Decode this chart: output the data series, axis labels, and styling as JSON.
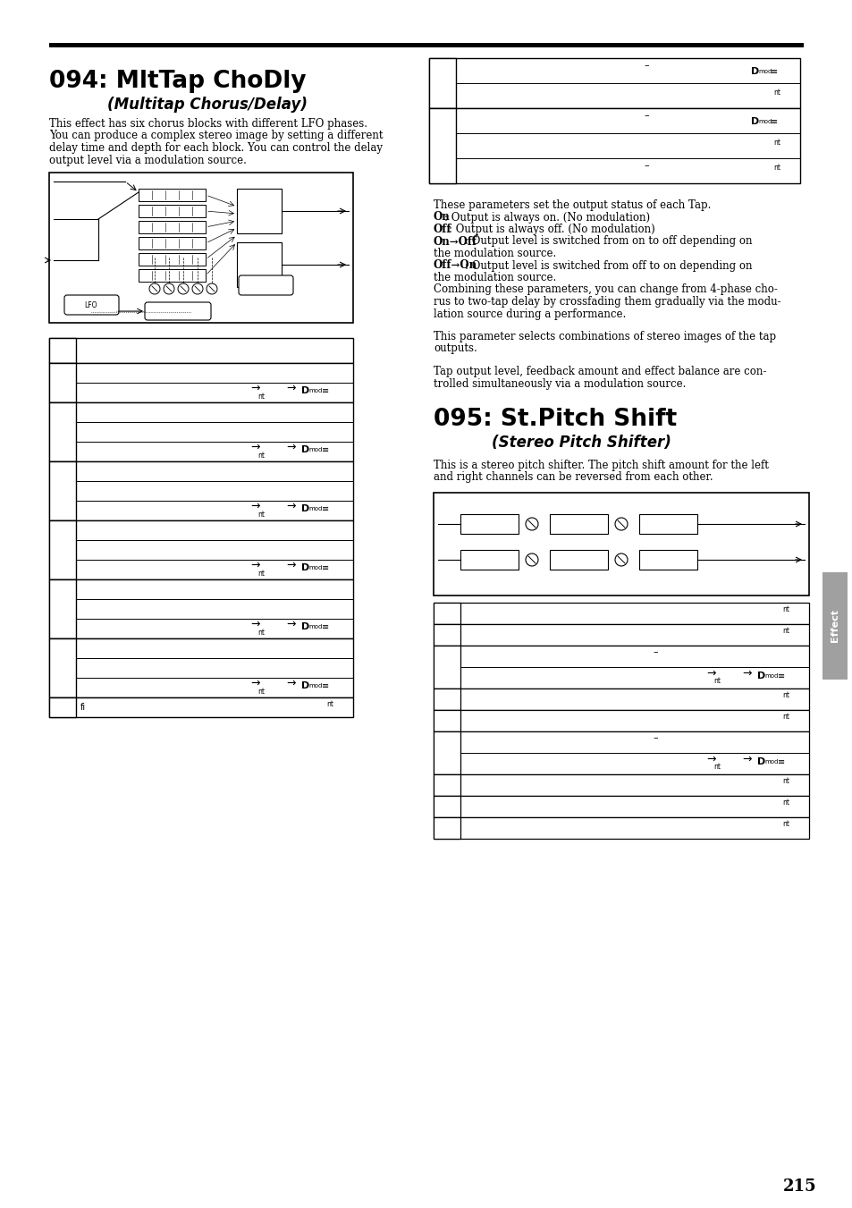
{
  "page_number": "215",
  "section1_title": "094: MltTap ChoDly",
  "section1_subtitle": "(Multitap Chorus/Delay)",
  "section1_desc_lines": [
    "This effect has six chorus blocks with different LFO phases.",
    "You can produce a complex stereo image by setting a different",
    "delay time and depth for each block. You can control the delay",
    "output level via a modulation source."
  ],
  "section2_title": "095: St.Pitch Shift",
  "section2_subtitle": "(Stereo Pitch Shifter)",
  "section2_desc_lines": [
    "This is a stereo pitch shifter. The pitch shift amount for the left",
    "and right channels can be reversed from each other."
  ],
  "right_desc_lines": [
    "These parameters set the output status of each Tap.",
    [
      "On",
      ": Output is always on. (No modulation)"
    ],
    [
      "Off",
      ": Output is always off. (No modulation)"
    ],
    [
      "On→Off",
      ": Output level is switched from on to off depending on"
    ],
    "the modulation source.",
    [
      "Off→On",
      ": Output level is switched from off to on depending on"
    ],
    "the modulation source.",
    "Combining these parameters, you can change from 4-phase cho-",
    "rus to two-tap delay by crossfading them gradually via the modu-",
    "lation source during a performance."
  ],
  "right_desc2": [
    "This parameter selects combinations of stereo images of the tap",
    "outputs."
  ],
  "right_desc3": [
    "Tap output level, feedback amount and effect balance are con-",
    "trolled simultaneously via a modulation source."
  ],
  "effect_label": "Effect",
  "bg": "#ffffff",
  "black": "#000000",
  "gray_tab": "#cccccc"
}
